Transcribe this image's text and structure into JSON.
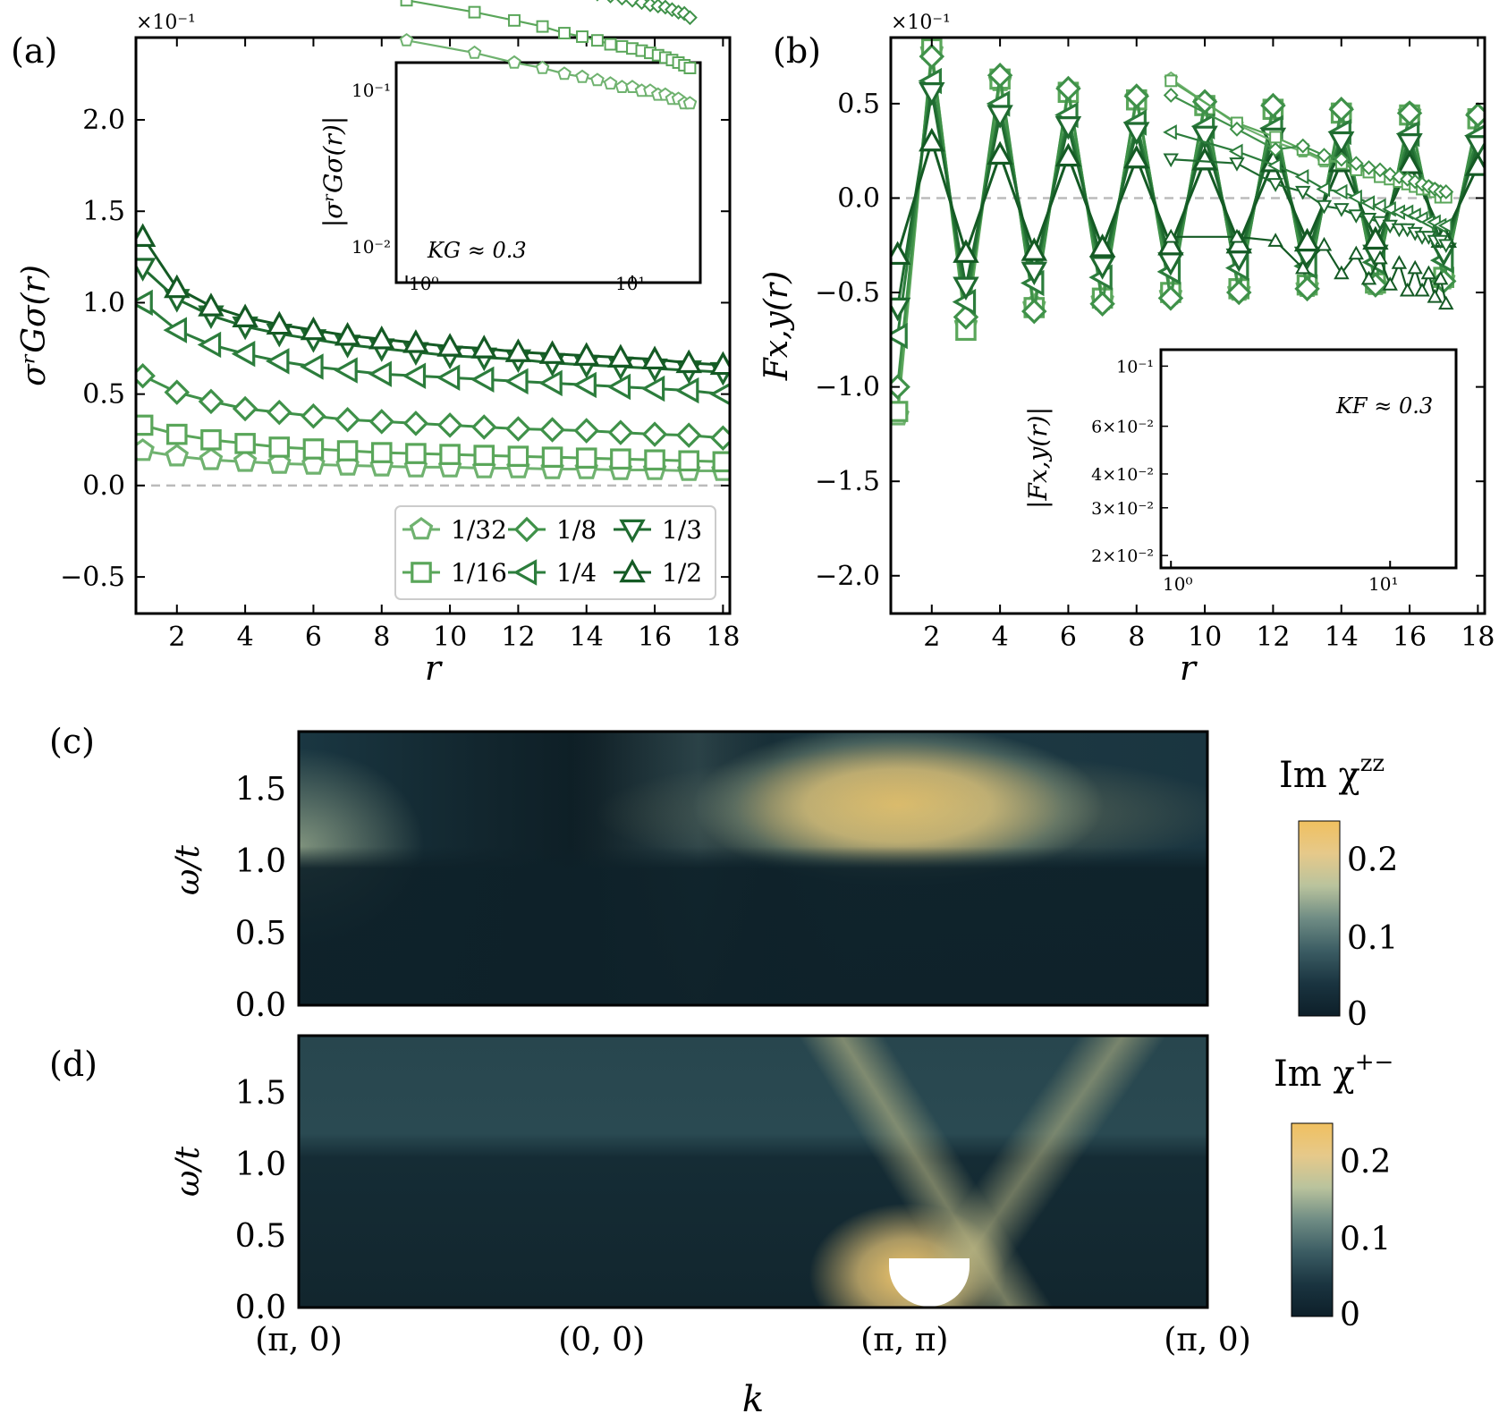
{
  "figure": {
    "style": {
      "frame_color": "#000000",
      "dash_color": "#bbbbbb",
      "series_colors": [
        "#6fb26f",
        "#5aa65a",
        "#3f9149",
        "#2c7d3c",
        "#1f6b30",
        "#145a24"
      ],
      "colormap": [
        "#0d1f29",
        "#1a3440",
        "#3b5c63",
        "#6f8c84",
        "#b9c39d",
        "#e6c98a",
        "#f0c060"
      ]
    }
  },
  "chart_data": [
    {
      "id": "a",
      "type": "line",
      "panel_label": "(a)",
      "scale_note": "×10⁻¹",
      "xlabel": "r",
      "ylabel": "σʳGσ(r)",
      "xlim": [
        0.8,
        18.2
      ],
      "ylim": [
        -0.7,
        2.45
      ],
      "x_ticks": [
        2,
        4,
        6,
        8,
        10,
        12,
        14,
        16,
        18
      ],
      "y_ticks": [
        -0.5,
        0.0,
        0.5,
        1.0,
        1.5,
        2.0
      ],
      "y_tick_labels": [
        "−0.5",
        "0.0",
        "0.5",
        "1.0",
        "1.5",
        "2.0"
      ],
      "legend_title": "",
      "series": [
        {
          "name": "1/32",
          "marker": "pentagon",
          "values": [
            0.19,
            0.16,
            0.14,
            0.13,
            0.12,
            0.115,
            0.11,
            0.105,
            0.1,
            0.1,
            0.095,
            0.095,
            0.09,
            0.09,
            0.085,
            0.085,
            0.08,
            0.08
          ]
        },
        {
          "name": "1/16",
          "marker": "square",
          "values": [
            0.33,
            0.28,
            0.25,
            0.23,
            0.21,
            0.2,
            0.19,
            0.18,
            0.175,
            0.17,
            0.165,
            0.16,
            0.155,
            0.15,
            0.145,
            0.14,
            0.135,
            0.13
          ]
        },
        {
          "name": "1/8",
          "marker": "diamond",
          "values": [
            0.6,
            0.51,
            0.46,
            0.42,
            0.4,
            0.38,
            0.36,
            0.35,
            0.34,
            0.33,
            0.32,
            0.31,
            0.305,
            0.3,
            0.29,
            0.28,
            0.275,
            0.26
          ]
        },
        {
          "name": "1/4",
          "marker": "triangle-left",
          "values": [
            1.0,
            0.85,
            0.77,
            0.72,
            0.68,
            0.65,
            0.63,
            0.61,
            0.6,
            0.59,
            0.58,
            0.57,
            0.56,
            0.55,
            0.54,
            0.53,
            0.52,
            0.5
          ]
        },
        {
          "name": "1/3",
          "marker": "triangle-down",
          "values": [
            1.19,
            1.02,
            0.93,
            0.87,
            0.83,
            0.8,
            0.77,
            0.75,
            0.73,
            0.71,
            0.7,
            0.69,
            0.67,
            0.66,
            0.65,
            0.64,
            0.63,
            0.62
          ]
        },
        {
          "name": "1/2",
          "marker": "triangle-up",
          "values": [
            1.36,
            1.08,
            0.98,
            0.92,
            0.88,
            0.85,
            0.82,
            0.8,
            0.78,
            0.76,
            0.75,
            0.73,
            0.72,
            0.71,
            0.7,
            0.69,
            0.67,
            0.66
          ]
        }
      ],
      "legend_labels": [
        "1/32",
        "1/8",
        "1/3",
        "1/16",
        "1/4",
        "1/2"
      ],
      "inset": {
        "type": "line",
        "scale": "log-log",
        "ylabel": "|σʳGσ(r)|",
        "annotation": "KG ≈ 0.3",
        "xlim": [
          0.9,
          20
        ],
        "ylim": [
          0.0068,
          0.14
        ],
        "x_tick_labels": [
          "10⁰",
          "10¹"
        ],
        "y_tick_labels": [
          "10⁻¹",
          "10⁻²"
        ],
        "note": "Same series as main panel (absolute values)."
      }
    },
    {
      "id": "b",
      "type": "line",
      "panel_label": "(b)",
      "scale_note": "×10⁻¹",
      "xlabel": "r",
      "ylabel": "Fx,y(r)",
      "xlim": [
        0.8,
        18.2
      ],
      "ylim": [
        -2.2,
        0.85
      ],
      "x_ticks": [
        2,
        4,
        6,
        8,
        10,
        12,
        14,
        16,
        18
      ],
      "y_ticks": [
        -2.0,
        -1.5,
        -1.0,
        -0.5,
        0.0,
        0.5
      ],
      "y_tick_labels": [
        "−2.0",
        "−1.5",
        "−1.0",
        "−0.5",
        "0.0",
        "0.5"
      ],
      "series": [
        {
          "name": "1/32",
          "marker": "pentagon",
          "values": [
            -1.15,
            0.78,
            -0.67,
            0.62,
            -0.57,
            0.57,
            -0.54,
            0.53,
            -0.51,
            0.5,
            -0.49,
            0.48,
            -0.47,
            0.46,
            -0.46,
            0.45,
            -0.43,
            0.43
          ]
        },
        {
          "name": "1/16",
          "marker": "square",
          "values": [
            -1.13,
            0.79,
            -0.7,
            0.63,
            -0.58,
            0.56,
            -0.53,
            0.52,
            -0.5,
            0.49,
            -0.48,
            0.47,
            -0.46,
            0.45,
            -0.45,
            0.44,
            -0.42,
            0.42
          ]
        },
        {
          "name": "1/8",
          "marker": "diamond",
          "values": [
            -1.0,
            0.75,
            -0.63,
            0.65,
            -0.6,
            0.58,
            -0.56,
            0.54,
            -0.53,
            0.51,
            -0.5,
            0.49,
            -0.48,
            0.47,
            -0.46,
            0.45,
            -0.44,
            0.44
          ]
        },
        {
          "name": "1/4",
          "marker": "triangle-left",
          "values": [
            -0.73,
            0.62,
            -0.55,
            0.5,
            -0.45,
            0.44,
            -0.42,
            0.4,
            -0.39,
            0.38,
            -0.37,
            0.37,
            -0.36,
            0.35,
            -0.34,
            0.34,
            -0.33,
            0.33
          ]
        },
        {
          "name": "1/3",
          "marker": "triangle-down",
          "values": [
            -0.58,
            0.56,
            -0.47,
            0.44,
            -0.39,
            0.38,
            -0.36,
            0.35,
            -0.34,
            0.33,
            -0.32,
            0.32,
            -0.31,
            0.3,
            -0.3,
            0.29,
            -0.29,
            0.28
          ]
        },
        {
          "name": "1/2",
          "marker": "triangle-up",
          "values": [
            -0.3,
            0.3,
            -0.29,
            0.23,
            -0.28,
            0.22,
            -0.26,
            0.21,
            -0.25,
            0.2,
            -0.24,
            0.19,
            -0.23,
            0.19,
            -0.22,
            0.18,
            -0.21,
            0.17
          ]
        }
      ],
      "inset": {
        "type": "line",
        "scale": "log-log",
        "ylabel": "|Fx,y(r)|",
        "annotation": "KF ≈ 0.3",
        "xlim": [
          0.9,
          20
        ],
        "ylim": [
          0.018,
          0.115
        ],
        "x_tick_labels": [
          "10⁰",
          "10¹"
        ],
        "y_tick_values": [
          0.1,
          0.06,
          0.04,
          0.03,
          0.02
        ],
        "y_tick_labels": [
          "10⁻¹",
          "6×10⁻²",
          "4×10⁻²",
          "3×10⁻²",
          "2×10⁻²"
        ],
        "note": "Same series as main panel (absolute values)."
      }
    },
    {
      "id": "c",
      "type": "heatmap",
      "panel_label": "(c)",
      "ylabel": "ω/t",
      "y_ticks": [
        0.0,
        0.5,
        1.0,
        1.5
      ],
      "y_tick_labels": [
        "0.0",
        "0.5",
        "1.0",
        "1.5"
      ],
      "ylim": [
        0,
        1.9
      ],
      "colorbar_title": "Im χ^zz",
      "colorbar_title_main": "Im χ",
      "colorbar_title_sup": "zz",
      "colorbar_ticks": [
        0,
        0.1,
        0.2
      ],
      "colorbar_tick_labels": [
        "0",
        "0.1",
        "0.2"
      ],
      "colorbar_range": [
        0,
        0.25
      ]
    },
    {
      "id": "d",
      "type": "heatmap",
      "panel_label": "(d)",
      "xlabel": "k",
      "ylabel": "ω/t",
      "x_tick_labels": [
        "(π, 0)",
        "(0, 0)",
        "(π, π)",
        "(π, 0)"
      ],
      "y_ticks": [
        0.0,
        0.5,
        1.0,
        1.5
      ],
      "y_tick_labels": [
        "0.0",
        "0.5",
        "1.0",
        "1.5"
      ],
      "ylim": [
        0,
        1.9
      ],
      "colorbar_title": "Im χ^+−",
      "colorbar_title_main": "Im χ",
      "colorbar_title_sup": "+−",
      "colorbar_ticks": [
        0,
        0.1,
        0.2
      ],
      "colorbar_tick_labels": [
        "0",
        "0.1",
        "0.2"
      ],
      "colorbar_range": [
        0,
        0.25
      ]
    }
  ]
}
